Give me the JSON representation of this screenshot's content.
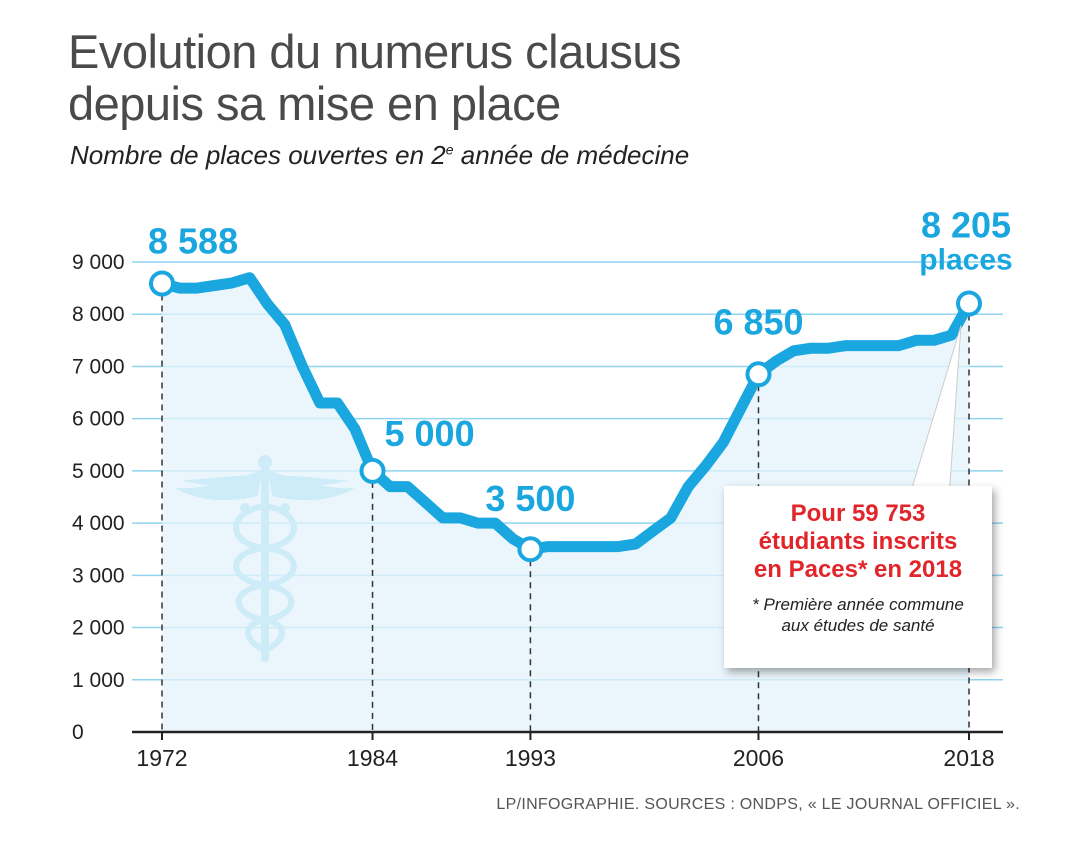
{
  "header": {
    "title_line1": "Evolution du numerus clausus",
    "title_line2": "depuis sa mise en place",
    "subtitle_before": "Nombre de places ouvertes en 2",
    "subtitle_sup": "e",
    "subtitle_after": " année de médecine"
  },
  "callout": {
    "line1": "Pour 59 753",
    "line2": "étudiants inscrits",
    "line3": "en Paces* en 2018",
    "note_line1": "* Première année commune",
    "note_line2": "aux études de santé"
  },
  "source": "LP/INFOGRAPHIE. SOURCES : ONDPS, « LE JOURNAL OFFICIEL ».",
  "icon": "caduceus-icon",
  "colors": {
    "line": "#1aa6df",
    "fill": "#e3f3fb",
    "grid": "#8fd3ef",
    "label": "#1aa6df",
    "callout_text": "#e0252b"
  },
  "chart_data": {
    "type": "area",
    "title": "Evolution du numerus clausus depuis sa mise en place",
    "subtitle": "Nombre de places ouvertes en 2e année de médecine",
    "xlabel": "",
    "ylabel": "",
    "xlim": [
      1972,
      2018
    ],
    "ylim": [
      0,
      9000
    ],
    "grid": true,
    "yticks": [
      {
        "value": 0,
        "label": "0"
      },
      {
        "value": 1000,
        "label": "1 000"
      },
      {
        "value": 2000,
        "label": "2 000"
      },
      {
        "value": 3000,
        "label": "3 000"
      },
      {
        "value": 4000,
        "label": "4 000"
      },
      {
        "value": 5000,
        "label": "5 000"
      },
      {
        "value": 6000,
        "label": "6 000"
      },
      {
        "value": 7000,
        "label": "7 000"
      },
      {
        "value": 8000,
        "label": "8 000"
      },
      {
        "value": 9000,
        "label": "9 000"
      }
    ],
    "xticks": [
      {
        "value": 1972,
        "label": "1972"
      },
      {
        "value": 1984,
        "label": "1984"
      },
      {
        "value": 1993,
        "label": "1993"
      },
      {
        "value": 2006,
        "label": "2006"
      },
      {
        "value": 2018,
        "label": "2018"
      }
    ],
    "series": [
      {
        "x": [
          1972,
          1973,
          1974,
          1975,
          1976,
          1977,
          1978,
          1979,
          1980,
          1981,
          1982,
          1983,
          1984,
          1985,
          1986,
          1987,
          1988,
          1989,
          1990,
          1991,
          1992,
          1993,
          1994,
          1995,
          1996,
          1997,
          1998,
          1999,
          2000,
          2001,
          2002,
          2003,
          2004,
          2005,
          2006,
          2007,
          2008,
          2009,
          2010,
          2011,
          2012,
          2013,
          2014,
          2015,
          2016,
          2017,
          2018
        ],
        "values": [
          8588,
          8500,
          8500,
          8550,
          8600,
          8700,
          8200,
          7800,
          7000,
          6300,
          6300,
          5800,
          5000,
          4700,
          4700,
          4400,
          4100,
          4100,
          4000,
          4000,
          3700,
          3500,
          3550,
          3550,
          3550,
          3550,
          3550,
          3600,
          3850,
          4100,
          4700,
          5100,
          5550,
          6200,
          6850,
          7100,
          7300,
          7350,
          7350,
          7400,
          7400,
          7400,
          7400,
          7500,
          7500,
          7600,
          8205
        ]
      }
    ],
    "annotations": [
      {
        "x": 1972,
        "y": 8588,
        "label": "8 588"
      },
      {
        "x": 1984,
        "y": 5000,
        "label": "5 000"
      },
      {
        "x": 1993,
        "y": 3500,
        "label": "3 500"
      },
      {
        "x": 2006,
        "y": 6850,
        "label": "6 850"
      },
      {
        "x": 2018,
        "y": 8205,
        "label": "8 205",
        "label2": "places"
      }
    ]
  }
}
